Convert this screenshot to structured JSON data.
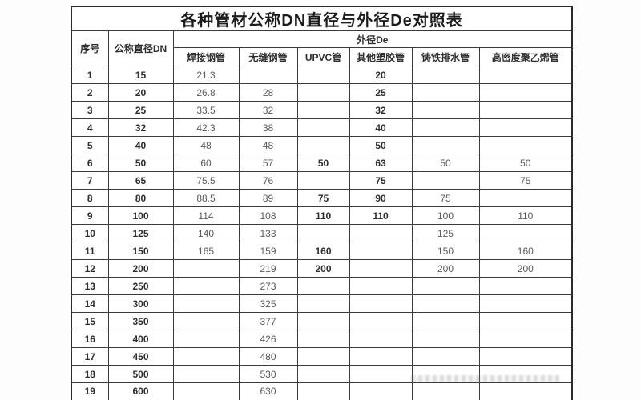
{
  "title": "各种管材公称DN直径与外径De对照表",
  "table": {
    "header": {
      "index": "序号",
      "dn": "公称直径DN",
      "de_group": "外径De",
      "materials": [
        "焊接钢管",
        "无缝钢管",
        "UPVC管",
        "其他塑胶管",
        "铸铁排水管",
        "高密度聚乙烯管"
      ]
    },
    "rows": [
      {
        "no": "1",
        "dn": "15",
        "de": [
          "21.3",
          "",
          "",
          "20",
          "",
          ""
        ]
      },
      {
        "no": "2",
        "dn": "20",
        "de": [
          "26.8",
          "28",
          "",
          "25",
          "",
          ""
        ]
      },
      {
        "no": "3",
        "dn": "25",
        "de": [
          "33.5",
          "32",
          "",
          "32",
          "",
          ""
        ]
      },
      {
        "no": "4",
        "dn": "32",
        "de": [
          "42.3",
          "38",
          "",
          "40",
          "",
          ""
        ]
      },
      {
        "no": "5",
        "dn": "40",
        "de": [
          "48",
          "48",
          "",
          "50",
          "",
          ""
        ]
      },
      {
        "no": "6",
        "dn": "50",
        "de": [
          "60",
          "57",
          "50",
          "63",
          "50",
          "50"
        ]
      },
      {
        "no": "7",
        "dn": "65",
        "de": [
          "75.5",
          "76",
          "",
          "75",
          "",
          "75"
        ]
      },
      {
        "no": "8",
        "dn": "80",
        "de": [
          "88.5",
          "89",
          "75",
          "90",
          "75",
          ""
        ]
      },
      {
        "no": "9",
        "dn": "100",
        "de": [
          "114",
          "108",
          "110",
          "110",
          "100",
          "110"
        ]
      },
      {
        "no": "10",
        "dn": "125",
        "de": [
          "140",
          "133",
          "",
          "",
          "125",
          ""
        ]
      },
      {
        "no": "11",
        "dn": "150",
        "de": [
          "165",
          "159",
          "160",
          "",
          "150",
          "160"
        ]
      },
      {
        "no": "12",
        "dn": "200",
        "de": [
          "",
          "219",
          "200",
          "",
          "200",
          "200"
        ]
      },
      {
        "no": "13",
        "dn": "250",
        "de": [
          "",
          "273",
          "",
          "",
          "",
          ""
        ]
      },
      {
        "no": "14",
        "dn": "300",
        "de": [
          "",
          "325",
          "",
          "",
          "",
          ""
        ]
      },
      {
        "no": "15",
        "dn": "350",
        "de": [
          "",
          "377",
          "",
          "",
          "",
          ""
        ]
      },
      {
        "no": "16",
        "dn": "400",
        "de": [
          "",
          "426",
          "",
          "",
          "",
          ""
        ]
      },
      {
        "no": "17",
        "dn": "450",
        "de": [
          "",
          "480",
          "",
          "",
          "",
          ""
        ]
      },
      {
        "no": "18",
        "dn": "500",
        "de": [
          "",
          "530",
          "",
          "",
          "",
          ""
        ]
      },
      {
        "no": "19",
        "dn": "600",
        "de": [
          "",
          "630",
          "",
          "",
          "",
          ""
        ]
      }
    ]
  },
  "colors": {
    "border": "#3b3b3b",
    "text_strong": "#2e2e2e",
    "text_value": "#5a5a5a",
    "background": "#ffffff"
  }
}
